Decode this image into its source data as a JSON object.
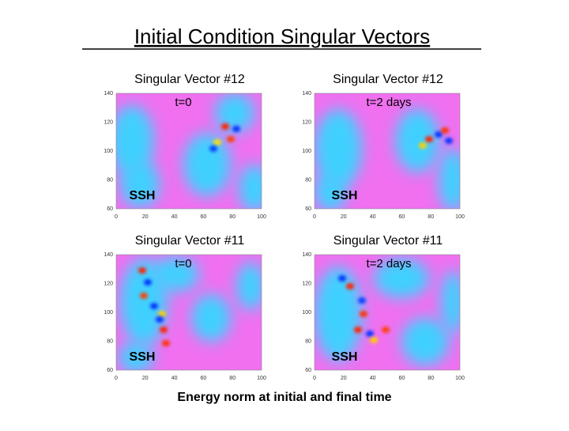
{
  "title": "Initial Condition Singular Vectors",
  "panels": [
    {
      "heading": "Singular Vector #12",
      "time_label": "t=0",
      "field_label": "SSH"
    },
    {
      "heading": "Singular Vector #12",
      "time_label": "t=2 days",
      "field_label": "SSH"
    },
    {
      "heading": "Singular Vector #11",
      "time_label": "t=0",
      "field_label": "SSH"
    },
    {
      "heading": "Singular Vector #11",
      "time_label": "t=2 days",
      "field_label": "SSH"
    }
  ],
  "y_ticks": [
    "140",
    "120",
    "100",
    "80",
    "60"
  ],
  "x_ticks": [
    "0",
    "20",
    "40",
    "60",
    "80",
    "100"
  ],
  "caption": "Energy norm at initial and final time"
}
